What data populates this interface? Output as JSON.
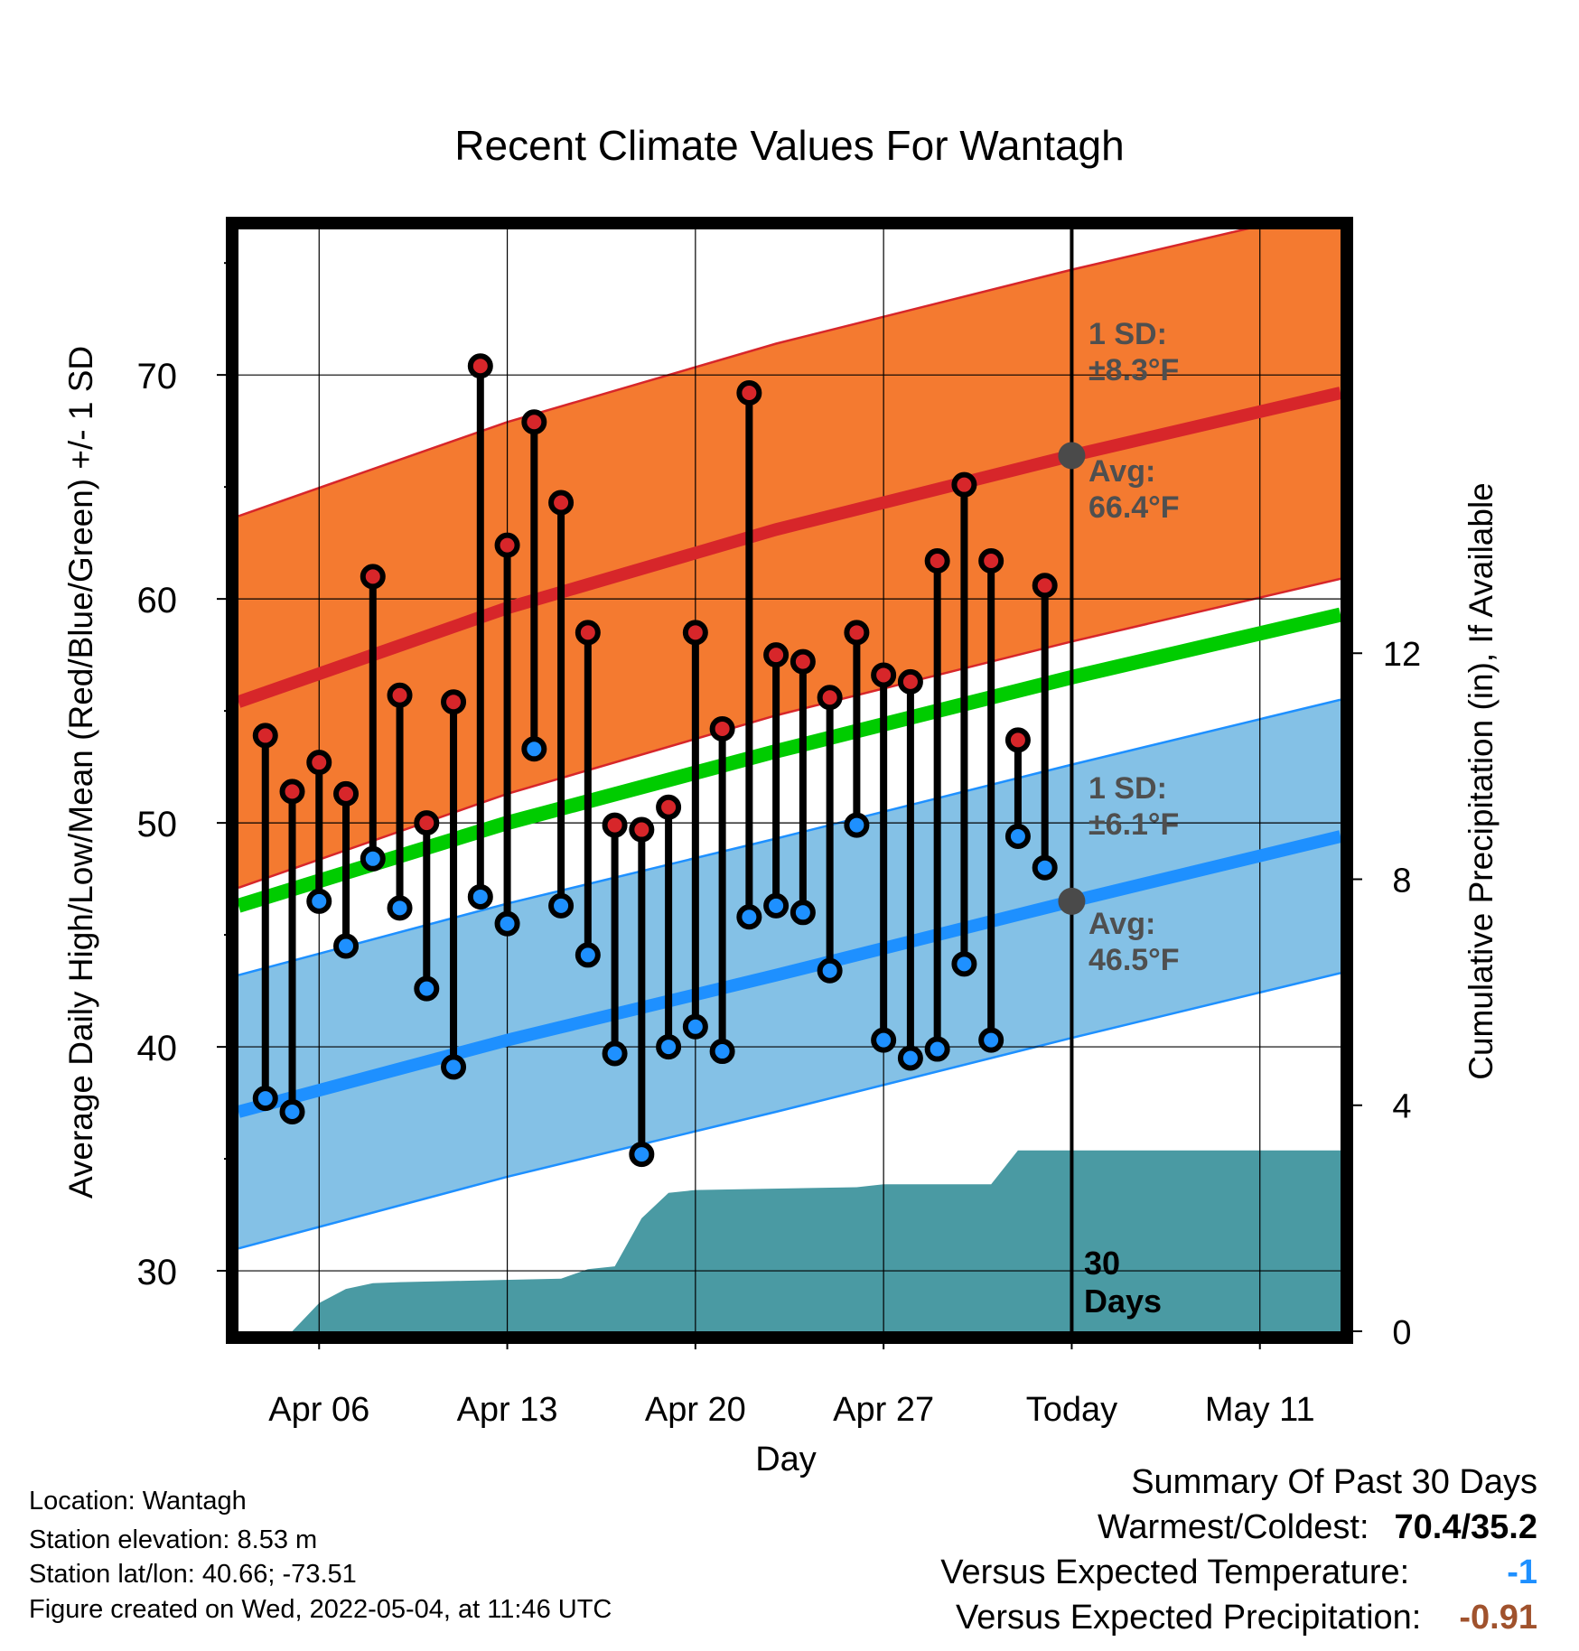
{
  "chart_data": {
    "type": "line",
    "title": "Recent Climate Values For Wantagh",
    "xlabel": "Day",
    "ylabel": "Average Daily High/Low/Mean (Red/Blue/Green) +/- 1 SD",
    "y2label": "Cumulative Precipitation (in), If Available",
    "xlim": [
      "2022-04-03",
      "2022-05-14"
    ],
    "ylim": [
      27.3,
      76.5
    ],
    "y2lim": [
      0,
      19.5
    ],
    "x_ticks": [
      "2022-04-06",
      "2022-04-13",
      "2022-04-20",
      "2022-04-27",
      "2022-05-04",
      "2022-05-11"
    ],
    "x_tick_labels": [
      "Apr 06",
      "Apr 13",
      "Apr 20",
      "Apr 27",
      "Today",
      "May 11"
    ],
    "y_ticks": [
      30,
      40,
      50,
      60,
      70
    ],
    "y_tick_labels": [
      "30",
      "40",
      "50",
      "60",
      "70"
    ],
    "y2_ticks": [
      0,
      4,
      8,
      12
    ],
    "y2_tick_labels": [
      "0",
      "4",
      "8",
      "12"
    ],
    "grid": true,
    "today": "2022-05-04",
    "normals": {
      "x": [
        "2022-04-03",
        "2022-04-13",
        "2022-04-23",
        "2022-05-04",
        "2022-05-14"
      ],
      "avg_high": [
        55.4,
        59.6,
        63.1,
        66.4,
        69.2
      ],
      "avg_low": [
        37.1,
        40.3,
        43.2,
        46.5,
        49.4
      ],
      "avg_mean": [
        46.3,
        50.0,
        53.2,
        56.5,
        59.3
      ],
      "high_sd": 8.3,
      "low_sd": 6.1
    },
    "series": [
      {
        "name": "High",
        "x": [
          "2022-04-04",
          "2022-04-05",
          "2022-04-06",
          "2022-04-07",
          "2022-04-08",
          "2022-04-09",
          "2022-04-10",
          "2022-04-11",
          "2022-04-12",
          "2022-04-13",
          "2022-04-14",
          "2022-04-15",
          "2022-04-16",
          "2022-04-17",
          "2022-04-18",
          "2022-04-19",
          "2022-04-20",
          "2022-04-21",
          "2022-04-22",
          "2022-04-23",
          "2022-04-24",
          "2022-04-25",
          "2022-04-26",
          "2022-04-27",
          "2022-04-28",
          "2022-04-29",
          "2022-04-30",
          "2022-05-01",
          "2022-05-02",
          "2022-05-03"
        ],
        "values": [
          53.9,
          51.4,
          52.7,
          51.3,
          61.0,
          55.7,
          50.0,
          55.4,
          70.4,
          62.4,
          67.9,
          64.3,
          58.5,
          49.9,
          49.7,
          50.7,
          58.5,
          54.2,
          69.2,
          57.5,
          57.2,
          55.6,
          58.5,
          56.6,
          56.3,
          61.7,
          65.1,
          61.7,
          53.7,
          60.6
        ]
      },
      {
        "name": "Low",
        "x": [
          "2022-04-04",
          "2022-04-05",
          "2022-04-06",
          "2022-04-07",
          "2022-04-08",
          "2022-04-09",
          "2022-04-10",
          "2022-04-11",
          "2022-04-12",
          "2022-04-13",
          "2022-04-14",
          "2022-04-15",
          "2022-04-16",
          "2022-04-17",
          "2022-04-18",
          "2022-04-19",
          "2022-04-20",
          "2022-04-21",
          "2022-04-22",
          "2022-04-23",
          "2022-04-24",
          "2022-04-25",
          "2022-04-26",
          "2022-04-27",
          "2022-04-28",
          "2022-04-29",
          "2022-04-30",
          "2022-05-01",
          "2022-05-02",
          "2022-05-03"
        ],
        "values": [
          37.7,
          37.1,
          46.5,
          44.5,
          48.4,
          46.2,
          42.6,
          39.1,
          46.7,
          45.5,
          53.3,
          46.3,
          44.1,
          39.7,
          35.2,
          40.0,
          40.9,
          39.8,
          45.8,
          46.3,
          46.0,
          43.4,
          49.9,
          40.3,
          39.5,
          39.9,
          43.7,
          40.3,
          49.4,
          48.0
        ]
      },
      {
        "name": "Cumulative Precipitation",
        "axis": "y2",
        "x": [
          "2022-04-05",
          "2022-04-06",
          "2022-04-07",
          "2022-04-08",
          "2022-04-09",
          "2022-04-15",
          "2022-04-16",
          "2022-04-17",
          "2022-04-18",
          "2022-04-19",
          "2022-04-20",
          "2022-04-26",
          "2022-04-27",
          "2022-05-01",
          "2022-05-02",
          "2022-05-14"
        ],
        "values": [
          0.0,
          0.5,
          0.75,
          0.85,
          0.87,
          0.93,
          1.1,
          1.15,
          2.0,
          2.45,
          2.5,
          2.55,
          2.6,
          2.6,
          3.2,
          3.2
        ]
      }
    ],
    "annotations": {
      "high_sd_label": "1 SD:",
      "high_sd_value": "±8.3°F",
      "high_avg_label": "Avg:",
      "high_avg_value": "66.4°F",
      "low_sd_label": "1 SD:",
      "low_sd_value": "±6.1°F",
      "low_avg_label": "Avg:",
      "low_avg_value": "46.5°F",
      "days_line1": "30",
      "days_line2": "Days"
    },
    "colors": {
      "high_band": "#f47a30",
      "high_line": "#d7262a",
      "low_band": "#84c1e6",
      "low_line": "#1e90ff",
      "mean_line": "#00cc00",
      "precip": "#4a9aa3",
      "high_marker": "#d7262a",
      "low_marker": "#1e90ff",
      "today_marker": "#4a4a4a"
    }
  },
  "info": {
    "location": "Location: Wantagh",
    "elevation": "Station elevation: 8.53 m",
    "latlon": "Station lat/lon: 40.66; -73.51",
    "created": "Figure created on Wed, 2022-05-04, at 11:46 UTC"
  },
  "summary": {
    "title": "Summary Of Past 30 Days",
    "warmest_label": "Warmest/Coldest:",
    "warmest_value": "70.4/35.2",
    "temp_label": "Versus Expected Temperature:",
    "temp_value": "-1",
    "temp_color": "#1e90ff",
    "precip_label": "Versus Expected Precipitation:",
    "precip_value": "-0.91",
    "precip_color": "#a0522d"
  }
}
